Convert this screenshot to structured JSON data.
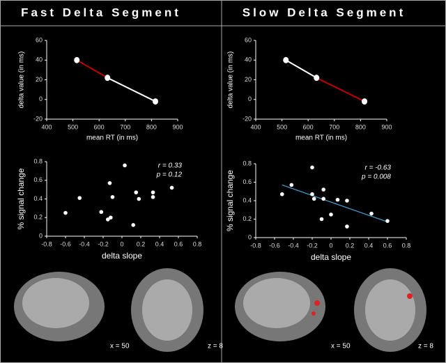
{
  "panels": [
    {
      "title": "Fast Delta Segment",
      "image_labels": [
        "x = 50",
        "z = 8"
      ]
    },
    {
      "title": "Slow Delta Segment",
      "image_labels": [
        "x = 50",
        "z = 8"
      ]
    }
  ],
  "chart_data": [
    {
      "type": "line",
      "x": [
        515,
        632,
        815
      ],
      "values": [
        40,
        22,
        -2
      ],
      "segment_colors": [
        "#c00000",
        "#ffffff"
      ],
      "xlabel": "mean RT (in ms)",
      "ylabel": "delta value (in ms)",
      "xlim": [
        400,
        900
      ],
      "xticks": [
        400,
        500,
        600,
        700,
        800,
        900
      ],
      "ylim": [
        -20,
        60
      ],
      "yticks": [
        -20,
        0,
        20,
        40,
        60
      ]
    },
    {
      "type": "line",
      "x": [
        515,
        632,
        815
      ],
      "values": [
        40,
        22,
        -2
      ],
      "segment_colors": [
        "#ffffff",
        "#c00000"
      ],
      "xlabel": "mean RT (in ms)",
      "ylabel": "delta value (in ms)",
      "xlim": [
        400,
        900
      ],
      "xticks": [
        400,
        500,
        600,
        700,
        800,
        900
      ],
      "ylim": [
        -20,
        60
      ],
      "yticks": [
        -20,
        0,
        20,
        40,
        60
      ]
    },
    {
      "type": "scatter",
      "x": [
        -0.6,
        -0.45,
        -0.22,
        -0.15,
        -0.12,
        -0.13,
        -0.1,
        0.03,
        0.12,
        0.15,
        0.18,
        0.33,
        0.33,
        0.53
      ],
      "values": [
        0.25,
        0.41,
        0.26,
        0.18,
        0.2,
        0.57,
        0.42,
        0.76,
        0.12,
        0.47,
        0.4,
        0.42,
        0.47,
        0.52
      ],
      "xlabel": "delta slope",
      "ylabel": "% signal change",
      "annotations": [
        "r = 0.33",
        "p = 0.12"
      ],
      "xlim": [
        -0.8,
        0.8
      ],
      "xticks": [
        -0.8,
        -0.6,
        -0.4,
        -0.2,
        0,
        0.2,
        0.4,
        0.6,
        0.8
      ],
      "ylim": [
        0,
        0.8
      ],
      "yticks": [
        0,
        0.2,
        0.4,
        0.6,
        0.8
      ]
    },
    {
      "type": "scatter",
      "x": [
        -0.52,
        -0.42,
        -0.2,
        -0.2,
        -0.18,
        -0.1,
        -0.08,
        -0.08,
        0.0,
        0.07,
        0.17,
        0.17,
        0.43,
        0.6
      ],
      "values": [
        0.47,
        0.57,
        0.76,
        0.47,
        0.42,
        0.2,
        0.52,
        0.42,
        0.25,
        0.41,
        0.4,
        0.12,
        0.26,
        0.18
      ],
      "fit_line": {
        "x": [
          -0.52,
          0.6
        ],
        "y": [
          0.57,
          0.17
        ],
        "color": "#4aa3d8"
      },
      "xlabel": "delta slope",
      "ylabel": "% signal change",
      "annotations": [
        "r = -0.63",
        "p = 0.008"
      ],
      "xlim": [
        -0.8,
        0.8
      ],
      "xticks": [
        -0.8,
        -0.6,
        -0.4,
        -0.2,
        0,
        0.2,
        0.4,
        0.6,
        0.8
      ],
      "ylim": [
        0,
        0.8
      ],
      "yticks": [
        0,
        0.2,
        0.4,
        0.6,
        0.8
      ]
    }
  ]
}
